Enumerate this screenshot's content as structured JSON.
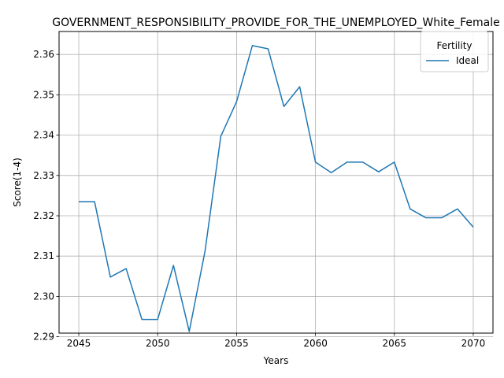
{
  "chart_data": {
    "type": "line",
    "title": "GOVERNMENT_RESPONSIBILITY_PROVIDE_FOR_THE_UNEMPLOYED_White_Female",
    "xlabel": "Years",
    "ylabel": "Score(1-4)",
    "x": [
      2045,
      2046,
      2047,
      2048,
      2049,
      2050,
      2051,
      2052,
      2053,
      2054,
      2055,
      2056,
      2057,
      2058,
      2059,
      2060,
      2061,
      2062,
      2063,
      2064,
      2065,
      2066,
      2067,
      2068,
      2069,
      2070
    ],
    "series": [
      {
        "name": "Ideal",
        "color": "#1f77b4",
        "values": [
          2.3235,
          2.3235,
          2.3048,
          2.3069,
          2.2943,
          2.2943,
          2.3077,
          2.2913,
          2.3112,
          2.3397,
          2.3483,
          2.3622,
          2.3614,
          2.3471,
          2.352,
          2.3333,
          2.3307,
          2.3333,
          2.3333,
          2.3309,
          2.3333,
          2.3217,
          2.3195,
          2.3195,
          2.3217,
          2.3172
        ]
      }
    ],
    "xticks": [
      2045,
      2050,
      2055,
      2060,
      2065,
      2070
    ],
    "yticks": [
      2.29,
      2.3,
      2.31,
      2.32,
      2.33,
      2.34,
      2.35,
      2.36
    ],
    "ytick_labels": [
      "2.29",
      "2.30",
      "2.31",
      "2.32",
      "2.33",
      "2.34",
      "2.35",
      "2.36"
    ],
    "xlim": [
      2043.75,
      2071.25
    ],
    "ylim": [
      2.2909,
      2.3657
    ],
    "grid": true,
    "legend": {
      "title": "Fertility",
      "placement": "top-right"
    }
  }
}
